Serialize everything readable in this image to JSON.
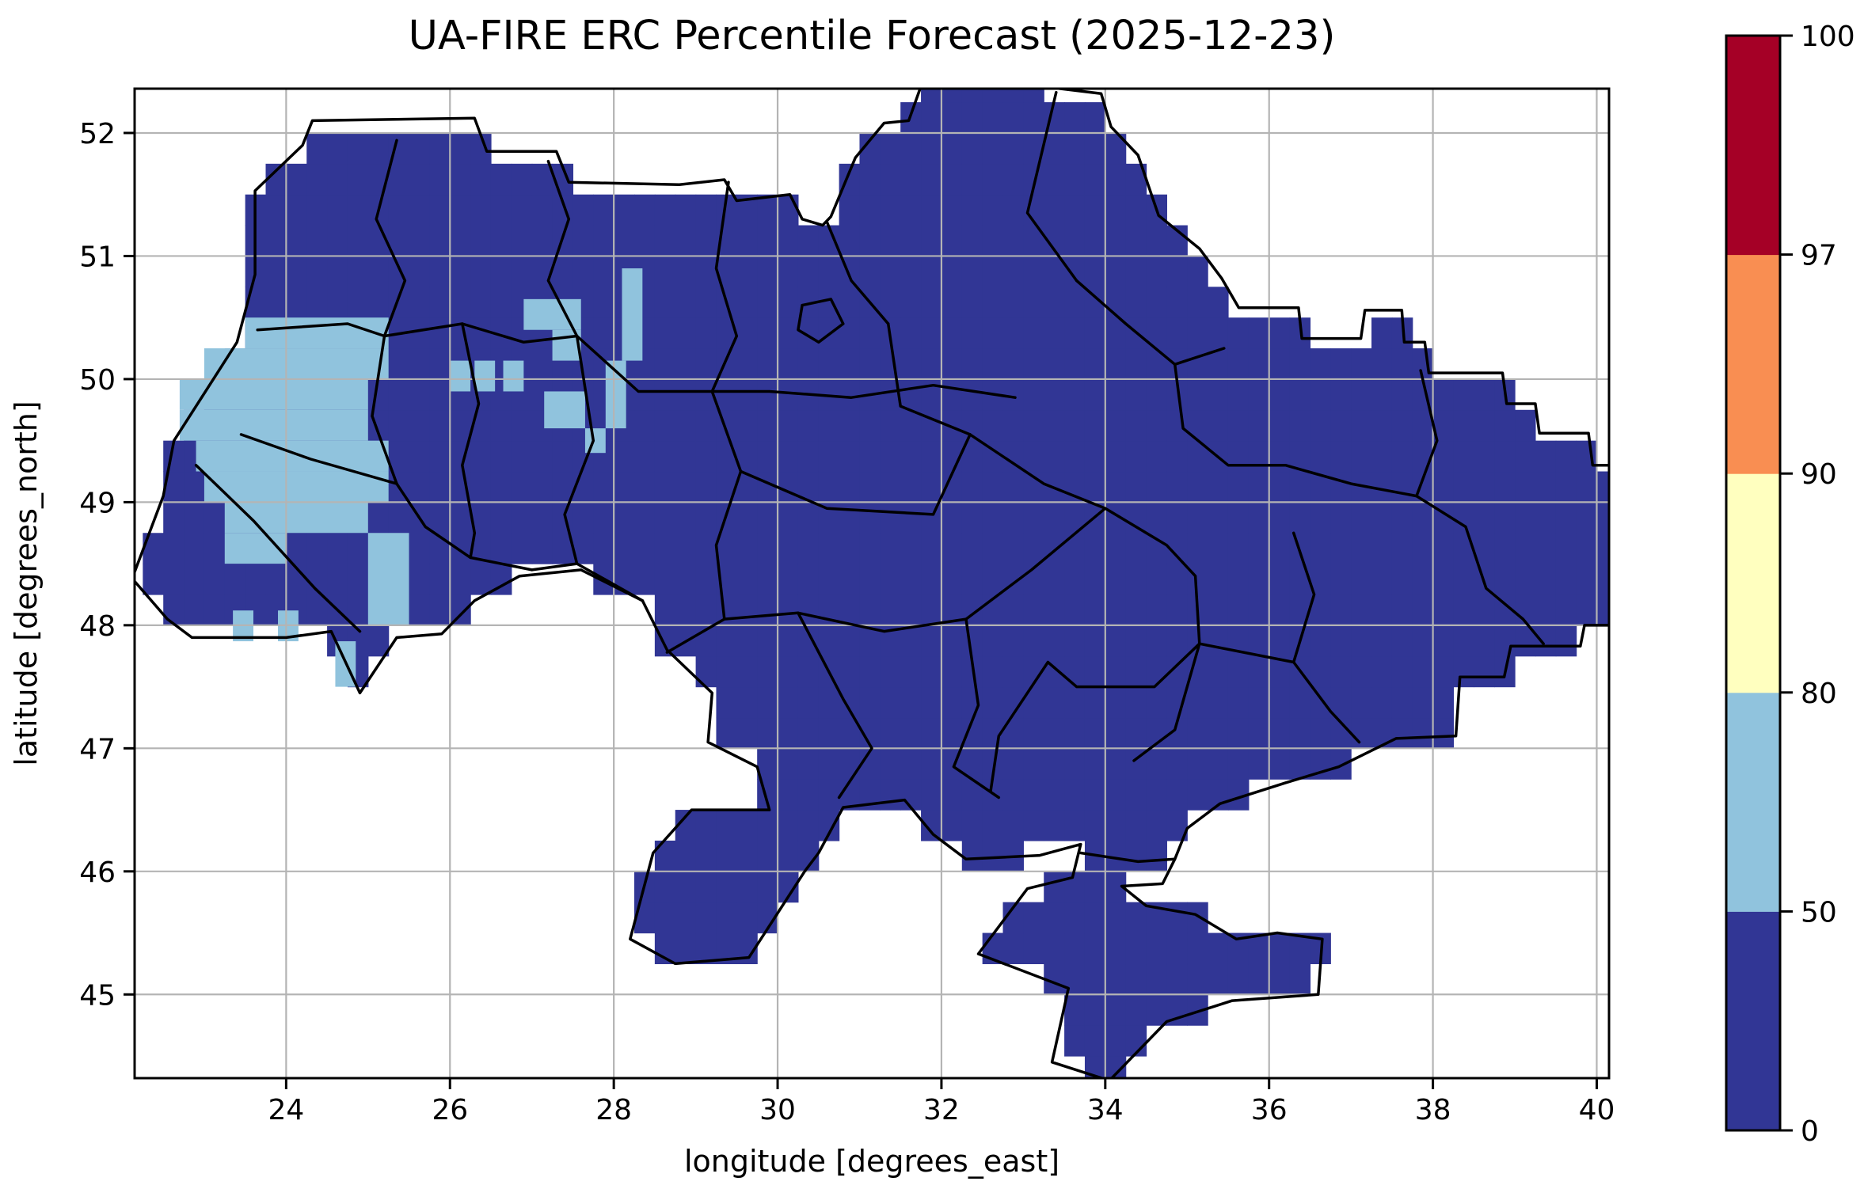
{
  "title": "UA-FIRE ERC Percentile Forecast (2025-12-23)",
  "axes": {
    "xlabel": "longitude [degrees_east]",
    "ylabel": "latitude [degrees_north]",
    "x_ticks": [
      24,
      26,
      28,
      30,
      32,
      34,
      36,
      38,
      40
    ],
    "y_ticks": [
      45,
      46,
      47,
      48,
      49,
      50,
      51,
      52
    ],
    "grid": true,
    "grid_color": "#b4b4b4",
    "frame_color": "#000000"
  },
  "chart_data": {
    "type": "heatmap",
    "title": "UA-FIRE ERC Percentile Forecast (2025-12-23)",
    "xlabel": "longitude [degrees_east]",
    "ylabel": "latitude [degrees_north]",
    "xlim": [
      22.15,
      40.15
    ],
    "ylim": [
      44.32,
      52.36
    ],
    "cell_size_deg": 0.25,
    "classes": [
      {
        "range": "0-50",
        "color": "#313695",
        "meaning": "ERC percentile 0-50 (covers most of Ukraine)"
      },
      {
        "range": "50-80",
        "color": "#90c3dd",
        "meaning": "ERC percentile 50-80 (patches in western Ukraine)"
      },
      {
        "range": "80-90",
        "color": "#ffffbf",
        "meaning": "not present on map"
      },
      {
        "range": "90-97",
        "color": "#f98e52",
        "meaning": "not present on map"
      },
      {
        "range": "97-100",
        "color": "#a50026",
        "meaning": "not present on map"
      }
    ],
    "country_outline": [
      [
        23.62,
        51.53
      ],
      [
        24.2,
        51.9
      ],
      [
        24.32,
        52.1
      ],
      [
        26.3,
        52.12
      ],
      [
        26.45,
        51.85
      ],
      [
        27.3,
        51.85
      ],
      [
        27.45,
        51.6
      ],
      [
        28.8,
        51.58
      ],
      [
        29.35,
        51.62
      ],
      [
        29.5,
        51.45
      ],
      [
        30.15,
        51.5
      ],
      [
        30.3,
        51.3
      ],
      [
        30.55,
        51.25
      ],
      [
        30.65,
        51.32
      ],
      [
        30.95,
        51.8
      ],
      [
        31.3,
        52.08
      ],
      [
        31.6,
        52.1
      ],
      [
        31.75,
        52.38
      ],
      [
        33.2,
        52.38
      ],
      [
        33.95,
        52.32
      ],
      [
        34.07,
        52.05
      ],
      [
        34.4,
        51.82
      ],
      [
        34.65,
        51.33
      ],
      [
        35.15,
        51.06
      ],
      [
        35.42,
        50.82
      ],
      [
        35.63,
        50.58
      ],
      [
        36.36,
        50.58
      ],
      [
        36.4,
        50.33
      ],
      [
        37.12,
        50.33
      ],
      [
        37.17,
        50.56
      ],
      [
        37.62,
        50.56
      ],
      [
        37.65,
        50.3
      ],
      [
        37.9,
        50.3
      ],
      [
        37.95,
        50.05
      ],
      [
        38.85,
        50.05
      ],
      [
        38.9,
        49.8
      ],
      [
        39.25,
        49.8
      ],
      [
        39.3,
        49.56
      ],
      [
        39.9,
        49.56
      ],
      [
        39.95,
        49.3
      ],
      [
        40.4,
        49.3
      ],
      [
        40.4,
        48.0
      ],
      [
        39.85,
        48.0
      ],
      [
        39.8,
        47.83
      ],
      [
        38.95,
        47.83
      ],
      [
        38.87,
        47.58
      ],
      [
        38.33,
        47.58
      ],
      [
        38.28,
        47.1
      ],
      [
        37.55,
        47.08
      ],
      [
        36.85,
        46.85
      ],
      [
        36.2,
        46.72
      ],
      [
        35.4,
        46.55
      ],
      [
        35.0,
        46.35
      ],
      [
        34.85,
        46.1
      ],
      [
        34.7,
        45.9
      ],
      [
        34.2,
        45.88
      ],
      [
        34.5,
        45.72
      ],
      [
        35.1,
        45.65
      ],
      [
        35.6,
        45.45
      ],
      [
        36.1,
        45.5
      ],
      [
        36.65,
        45.45
      ],
      [
        36.6,
        45.0
      ],
      [
        35.55,
        44.95
      ],
      [
        34.75,
        44.78
      ],
      [
        34.05,
        44.3
      ],
      [
        33.35,
        44.45
      ],
      [
        33.55,
        45.05
      ],
      [
        32.45,
        45.33
      ],
      [
        33.05,
        45.86
      ],
      [
        33.6,
        45.95
      ],
      [
        33.7,
        46.22
      ],
      [
        33.2,
        46.13
      ],
      [
        32.3,
        46.1
      ],
      [
        31.9,
        46.3
      ],
      [
        31.55,
        46.58
      ],
      [
        30.8,
        46.52
      ],
      [
        30.5,
        46.15
      ],
      [
        30.33,
        46.0
      ],
      [
        29.65,
        45.3
      ],
      [
        28.75,
        45.25
      ],
      [
        28.2,
        45.45
      ],
      [
        28.48,
        46.15
      ],
      [
        28.95,
        46.5
      ],
      [
        29.9,
        46.5
      ],
      [
        29.75,
        46.85
      ],
      [
        29.15,
        47.05
      ],
      [
        29.2,
        47.45
      ],
      [
        28.65,
        47.8
      ],
      [
        28.35,
        48.2
      ],
      [
        27.6,
        48.45
      ],
      [
        26.85,
        48.4
      ],
      [
        26.3,
        48.2
      ],
      [
        25.9,
        47.93
      ],
      [
        25.35,
        47.9
      ],
      [
        24.9,
        47.45
      ],
      [
        24.55,
        47.95
      ],
      [
        24.0,
        47.9
      ],
      [
        22.85,
        47.9
      ],
      [
        22.55,
        48.05
      ],
      [
        22.12,
        48.38
      ],
      [
        22.5,
        49.05
      ],
      [
        22.63,
        49.5
      ],
      [
        23.4,
        50.3
      ],
      [
        23.62,
        50.85
      ]
    ],
    "high_cells_50_80": [
      [
        23.5,
        50.25,
        25.25,
        50.5
      ],
      [
        23.0,
        50.0,
        25.25,
        50.25
      ],
      [
        22.7,
        49.75,
        25.0,
        50.0
      ],
      [
        22.7,
        49.5,
        25.0,
        49.75
      ],
      [
        22.9,
        49.25,
        25.25,
        49.5
      ],
      [
        23.0,
        49.0,
        25.25,
        49.25
      ],
      [
        23.25,
        48.75,
        25.0,
        49.0
      ],
      [
        23.25,
        48.5,
        24.0,
        48.75
      ],
      [
        25.0,
        48.0,
        25.5,
        48.75
      ],
      [
        23.35,
        47.87,
        23.6,
        48.12
      ],
      [
        23.9,
        47.87,
        24.15,
        48.12
      ],
      [
        24.6,
        47.5,
        24.85,
        47.87
      ],
      [
        26.0,
        49.9,
        26.25,
        50.15
      ],
      [
        26.3,
        49.9,
        26.55,
        50.15
      ],
      [
        26.65,
        49.9,
        26.9,
        50.15
      ],
      [
        26.9,
        50.4,
        27.6,
        50.65
      ],
      [
        27.25,
        50.15,
        27.6,
        50.4
      ],
      [
        28.1,
        50.15,
        28.35,
        50.9
      ],
      [
        27.15,
        49.6,
        27.65,
        49.9
      ],
      [
        27.9,
        49.6,
        28.15,
        50.15
      ],
      [
        27.65,
        49.4,
        27.9,
        49.6
      ]
    ],
    "oblast_boundaries": [
      [
        [
          25.35,
          51.94
        ],
        [
          25.1,
          51.3
        ],
        [
          25.45,
          50.8
        ],
        [
          25.2,
          50.35
        ]
      ],
      [
        [
          27.2,
          51.77
        ],
        [
          27.45,
          51.3
        ],
        [
          27.2,
          50.8
        ],
        [
          27.55,
          50.35
        ]
      ],
      [
        [
          29.4,
          51.6
        ],
        [
          29.25,
          50.9
        ],
        [
          29.5,
          50.35
        ],
        [
          29.2,
          49.9
        ]
      ],
      [
        [
          30.6,
          51.28
        ],
        [
          30.9,
          50.8
        ],
        [
          31.35,
          50.45
        ]
      ],
      [
        [
          33.4,
          52.33
        ],
        [
          33.05,
          51.35
        ],
        [
          33.65,
          50.8
        ]
      ],
      [
        [
          33.65,
          50.8
        ],
        [
          34.25,
          50.45
        ],
        [
          34.85,
          50.12
        ]
      ],
      [
        [
          34.85,
          50.12
        ],
        [
          34.95,
          49.6
        ],
        [
          35.5,
          49.3
        ],
        [
          36.2,
          49.3
        ],
        [
          37.0,
          49.15
        ],
        [
          37.8,
          49.05
        ]
      ],
      [
        [
          23.65,
          50.4
        ],
        [
          24.75,
          50.45
        ],
        [
          25.2,
          50.35
        ],
        [
          26.15,
          50.45
        ],
        [
          26.9,
          50.3
        ],
        [
          27.55,
          50.35
        ]
      ],
      [
        [
          27.55,
          50.35
        ],
        [
          28.3,
          49.9
        ],
        [
          29.2,
          49.9
        ],
        [
          29.9,
          49.9
        ],
        [
          30.9,
          49.85
        ],
        [
          31.9,
          49.95
        ],
        [
          32.9,
          49.85
        ]
      ],
      [
        [
          26.15,
          50.45
        ],
        [
          26.35,
          49.8
        ],
        [
          26.15,
          49.3
        ],
        [
          26.3,
          48.75
        ],
        [
          26.25,
          48.55
        ]
      ],
      [
        [
          25.2,
          50.35
        ],
        [
          25.05,
          49.7
        ],
        [
          25.35,
          49.15
        ]
      ],
      [
        [
          22.9,
          49.3
        ],
        [
          23.6,
          48.85
        ],
        [
          24.35,
          48.3
        ],
        [
          24.9,
          47.95
        ]
      ],
      [
        [
          23.45,
          49.55
        ],
        [
          24.3,
          49.35
        ],
        [
          25.35,
          49.15
        ]
      ],
      [
        [
          25.35,
          49.15
        ],
        [
          25.7,
          48.8
        ],
        [
          26.25,
          48.55
        ],
        [
          27.0,
          48.45
        ]
      ],
      [
        [
          27.55,
          50.35
        ],
        [
          27.75,
          49.5
        ],
        [
          27.4,
          48.9
        ],
        [
          27.55,
          48.5
        ]
      ],
      [
        [
          29.2,
          49.9
        ],
        [
          29.55,
          49.25
        ],
        [
          29.25,
          48.65
        ],
        [
          29.35,
          48.05
        ],
        [
          28.65,
          47.78
        ]
      ],
      [
        [
          31.35,
          50.45
        ],
        [
          31.5,
          49.78
        ],
        [
          32.35,
          49.55
        ],
        [
          33.25,
          49.15
        ],
        [
          34.0,
          48.95
        ],
        [
          34.75,
          48.65
        ],
        [
          35.1,
          48.4
        ],
        [
          35.15,
          47.85
        ],
        [
          34.6,
          47.5
        ],
        [
          33.65,
          47.5
        ],
        [
          33.3,
          47.7
        ],
        [
          32.7,
          47.1
        ],
        [
          32.6,
          46.65
        ]
      ],
      [
        [
          29.55,
          49.25
        ],
        [
          30.6,
          48.95
        ],
        [
          31.9,
          48.9
        ],
        [
          32.35,
          49.55
        ]
      ],
      [
        [
          29.35,
          48.05
        ],
        [
          30.25,
          48.1
        ],
        [
          31.3,
          47.95
        ],
        [
          32.3,
          48.05
        ],
        [
          33.1,
          48.45
        ],
        [
          34.0,
          48.95
        ]
      ],
      [
        [
          30.25,
          48.1
        ],
        [
          30.8,
          47.4
        ],
        [
          31.15,
          47.0
        ],
        [
          30.75,
          46.6
        ]
      ],
      [
        [
          32.3,
          48.05
        ],
        [
          32.45,
          47.35
        ],
        [
          32.15,
          46.85
        ],
        [
          32.7,
          46.6
        ]
      ],
      [
        [
          35.15,
          47.85
        ],
        [
          36.3,
          47.7
        ],
        [
          36.75,
          47.3
        ],
        [
          37.1,
          47.05
        ]
      ],
      [
        [
          36.3,
          48.75
        ],
        [
          36.55,
          48.25
        ],
        [
          36.3,
          47.7
        ]
      ],
      [
        [
          37.85,
          50.07
        ],
        [
          38.05,
          49.5
        ],
        [
          37.8,
          49.05
        ]
      ],
      [
        [
          37.8,
          49.05
        ],
        [
          38.4,
          48.8
        ],
        [
          38.65,
          48.3
        ],
        [
          39.1,
          48.05
        ],
        [
          39.35,
          47.85
        ]
      ],
      [
        [
          35.15,
          47.85
        ],
        [
          34.85,
          47.15
        ],
        [
          34.35,
          46.9
        ]
      ],
      [
        [
          33.7,
          46.15
        ],
        [
          34.4,
          46.08
        ],
        [
          34.85,
          46.1
        ]
      ],
      [
        [
          27.0,
          48.45
        ],
        [
          27.55,
          48.5
        ],
        [
          28.35,
          48.2
        ]
      ],
      [
        [
          34.85,
          50.12
        ],
        [
          35.45,
          50.25
        ]
      ],
      [
        [
          30.3,
          50.6
        ],
        [
          30.65,
          50.65
        ],
        [
          30.8,
          50.45
        ],
        [
          30.5,
          50.3
        ],
        [
          30.25,
          50.4
        ],
        [
          30.3,
          50.6
        ]
      ]
    ]
  },
  "colorbar": {
    "levels": [
      0,
      50,
      80,
      90,
      97,
      100
    ],
    "tick_labels": [
      "0",
      "50",
      "80",
      "90",
      "97",
      "100"
    ],
    "colors": [
      "#313695",
      "#90c3dd",
      "#ffffbf",
      "#f98e52",
      "#a50026"
    ],
    "orientation": "vertical",
    "position": "right"
  }
}
